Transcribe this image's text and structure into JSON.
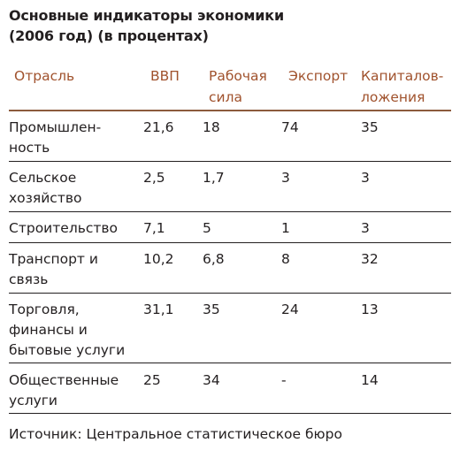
{
  "title": {
    "line1": "Основные индикаторы экономики",
    "line2": "(2006 год) (в процентах)"
  },
  "table": {
    "headers": {
      "sector": "Отрасль",
      "gdp": "ВВП",
      "labor_line1": "Рабочая",
      "labor_line2": "сила",
      "export": "Экспорт",
      "capital_line1": "Капиталов-",
      "capital_line2": "ложения"
    },
    "rows": [
      {
        "sector_line1": "Промышлен-",
        "sector_line2": "ность",
        "gdp": "21,6",
        "labor": "18",
        "export": "74",
        "capital": "35"
      },
      {
        "sector_line1": "Сельское",
        "sector_line2": "хозяйство",
        "gdp": "2,5",
        "labor": "1,7",
        "export": "3",
        "capital": "3"
      },
      {
        "sector_line1": "Строительство",
        "sector_line2": "",
        "gdp": "7,1",
        "labor": "5",
        "export": "1",
        "capital": "3"
      },
      {
        "sector_line1": "Транспорт и",
        "sector_line2": "связь",
        "gdp": "10,2",
        "labor": "6,8",
        "export": "8",
        "capital": "32"
      },
      {
        "sector_line1": "Торговля,",
        "sector_line2": "финансы и",
        "sector_line3": "бытовые услуги",
        "gdp": "31,1",
        "labor": "35",
        "export": "24",
        "capital": "13"
      },
      {
        "sector_line1": "Общественные",
        "sector_line2": "услуги",
        "gdp": "25",
        "labor": "34",
        "export": "-",
        "capital": "14"
      }
    ]
  },
  "source": "Источник: Центральное статистическое бюро",
  "colors": {
    "header_text": "#a0522d",
    "body_text": "#231f20"
  }
}
